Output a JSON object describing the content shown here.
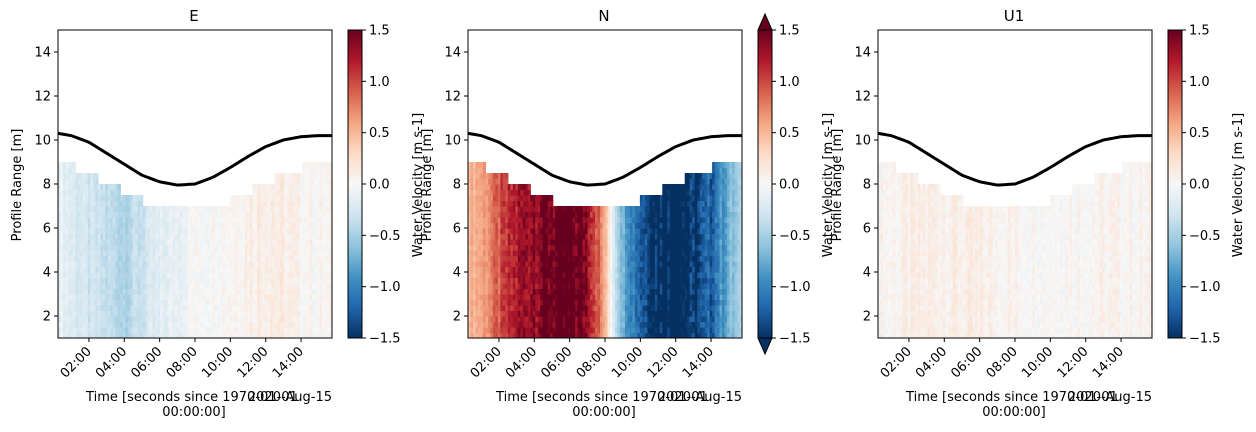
{
  "figure": {
    "colormap": "RdBu_r",
    "colormap_stops": [
      "#053061",
      "#2166ac",
      "#4393c3",
      "#92c5de",
      "#d1e5f0",
      "#f7f7f7",
      "#fddbc7",
      "#f4a582",
      "#d6604d",
      "#b2182b",
      "#67001f"
    ],
    "mask_color": "#ffffff",
    "surface_line_color": "#000000"
  },
  "chart_data": [
    {
      "type": "heatmap",
      "title": "E",
      "xlabel": "Time [seconds since 1970-01-01\n00:00:00]",
      "x_offset_label": "2020-Aug-15",
      "ylabel": "Profile Range [m]",
      "colorbar_label": "Water Velocity [m s-1]",
      "x_tick_labels": [
        "02:00",
        "04:00",
        "06:00",
        "08:00",
        "10:00",
        "12:00",
        "14:00"
      ],
      "y_tick_labels": [
        "2",
        "4",
        "6",
        "8",
        "10",
        "12",
        "14"
      ],
      "colorbar_tick_labels": [
        "1.5",
        "1.0",
        "0.5",
        "0.0",
        "−0.5",
        "−1.0",
        "−1.5"
      ],
      "xlim": [
        "2020-08-15 00:15",
        "2020-08-15 15:45"
      ],
      "ylim": [
        1,
        15
      ],
      "clim": [
        -1.5,
        1.5
      ],
      "colorbar_extend": "neither",
      "surface_line": {
        "x_hours": [
          0.25,
          1,
          2,
          3,
          4,
          5,
          6,
          7,
          8,
          9,
          10,
          11,
          12,
          13,
          14,
          15,
          15.75
        ],
        "y": [
          10.3,
          10.2,
          9.9,
          9.4,
          8.9,
          8.4,
          8.1,
          7.95,
          8.0,
          8.3,
          8.75,
          9.25,
          9.7,
          10.0,
          10.15,
          10.2,
          10.2
        ]
      },
      "valid_top": {
        "x_hours": [
          0.25,
          1.25,
          2.5,
          3.75,
          5,
          7,
          8,
          8.75,
          10,
          11.25,
          12.5,
          14,
          15
        ],
        "y": [
          9.0,
          8.5,
          8.0,
          7.5,
          7.0,
          7.0,
          7.0,
          7.0,
          7.5,
          8.0,
          8.5,
          9.0,
          9.0
        ]
      },
      "velocity_profile": {
        "x_hours": [
          0.25,
          2,
          4,
          6,
          8,
          10,
          12,
          14,
          15.75
        ],
        "values": [
          -0.1,
          -0.3,
          -0.45,
          -0.2,
          0.0,
          0.05,
          0.15,
          0.05,
          0.0
        ]
      }
    },
    {
      "type": "heatmap",
      "title": "N",
      "xlabel": "Time [seconds since 1970-01-01\n00:00:00]",
      "x_offset_label": "2020-Aug-15",
      "ylabel": "Profile Range [m]",
      "colorbar_label": "Water Velocity [m s-1]",
      "x_tick_labels": [
        "02:00",
        "04:00",
        "06:00",
        "08:00",
        "10:00",
        "12:00",
        "14:00"
      ],
      "y_tick_labels": [
        "2",
        "4",
        "6",
        "8",
        "10",
        "12",
        "14"
      ],
      "colorbar_tick_labels": [
        "1.5",
        "1.0",
        "0.5",
        "0.0",
        "−0.5",
        "−1.0",
        "−1.5"
      ],
      "xlim": [
        "2020-08-15 00:15",
        "2020-08-15 15:45"
      ],
      "ylim": [
        1,
        15
      ],
      "clim": [
        -1.5,
        1.5
      ],
      "colorbar_extend": "both",
      "surface_line": {
        "x_hours": [
          0.25,
          1,
          2,
          3,
          4,
          5,
          6,
          7,
          8,
          9,
          10,
          11,
          12,
          13,
          14,
          15,
          15.75
        ],
        "y": [
          10.3,
          10.2,
          9.9,
          9.4,
          8.9,
          8.4,
          8.1,
          7.95,
          8.0,
          8.3,
          8.75,
          9.25,
          9.7,
          10.0,
          10.15,
          10.2,
          10.2
        ]
      },
      "valid_top": {
        "x_hours": [
          0.25,
          1.25,
          2.5,
          3.75,
          5,
          7,
          8,
          8.75,
          10,
          11.25,
          12.5,
          14,
          15
        ],
        "y": [
          9.0,
          8.5,
          8.0,
          7.5,
          7.0,
          7.0,
          7.0,
          7.0,
          7.5,
          8.0,
          8.5,
          9.0,
          9.0
        ]
      },
      "velocity_profile": {
        "x_hours": [
          0.25,
          1,
          2,
          3,
          4,
          5,
          6,
          7,
          7.5,
          8,
          8.5,
          9,
          10,
          11,
          12,
          13,
          14,
          15,
          15.75
        ],
        "values": [
          0.5,
          0.6,
          0.9,
          1.2,
          1.4,
          1.5,
          1.55,
          1.4,
          1.0,
          0.5,
          -0.2,
          -0.7,
          -1.2,
          -1.5,
          -1.6,
          -1.5,
          -1.2,
          -0.7,
          -0.5
        ]
      }
    },
    {
      "type": "heatmap",
      "title": "U1",
      "xlabel": "Time [seconds since 1970-01-01\n00:00:00]",
      "x_offset_label": "2020-Aug-15",
      "ylabel": "Profile Range [m]",
      "colorbar_label": "Water Velocity [m s-1]",
      "x_tick_labels": [
        "02:00",
        "04:00",
        "06:00",
        "08:00",
        "10:00",
        "12:00",
        "14:00"
      ],
      "y_tick_labels": [
        "2",
        "4",
        "6",
        "8",
        "10",
        "12",
        "14"
      ],
      "colorbar_tick_labels": [
        "1.5",
        "1.0",
        "0.5",
        "0.0",
        "−0.5",
        "−1.0",
        "−1.5"
      ],
      "xlim": [
        "2020-08-15 00:15",
        "2020-08-15 15:45"
      ],
      "ylim": [
        1,
        15
      ],
      "clim": [
        -1.5,
        1.5
      ],
      "colorbar_extend": "neither",
      "surface_line": {
        "x_hours": [
          0.25,
          1,
          2,
          3,
          4,
          5,
          6,
          7,
          8,
          9,
          10,
          11,
          12,
          13,
          14,
          15,
          15.75
        ],
        "y": [
          10.3,
          10.2,
          9.9,
          9.4,
          8.9,
          8.4,
          8.1,
          7.95,
          8.0,
          8.3,
          8.75,
          9.25,
          9.7,
          10.0,
          10.15,
          10.2,
          10.2
        ]
      },
      "valid_top": {
        "x_hours": [
          0.25,
          1.25,
          2.5,
          3.75,
          5,
          7,
          8,
          8.75,
          10,
          11.25,
          12.5,
          14,
          15
        ],
        "y": [
          9.0,
          8.5,
          8.0,
          7.5,
          7.0,
          7.0,
          7.0,
          7.0,
          7.5,
          8.0,
          8.5,
          9.0,
          9.0
        ]
      },
      "velocity_profile": {
        "x_hours": [
          0.25,
          2,
          4,
          6,
          8,
          10,
          12,
          14,
          15.75
        ],
        "values": [
          0.03,
          0.08,
          0.1,
          0.08,
          0.05,
          0.03,
          0.05,
          0.05,
          0.03
        ]
      }
    }
  ]
}
